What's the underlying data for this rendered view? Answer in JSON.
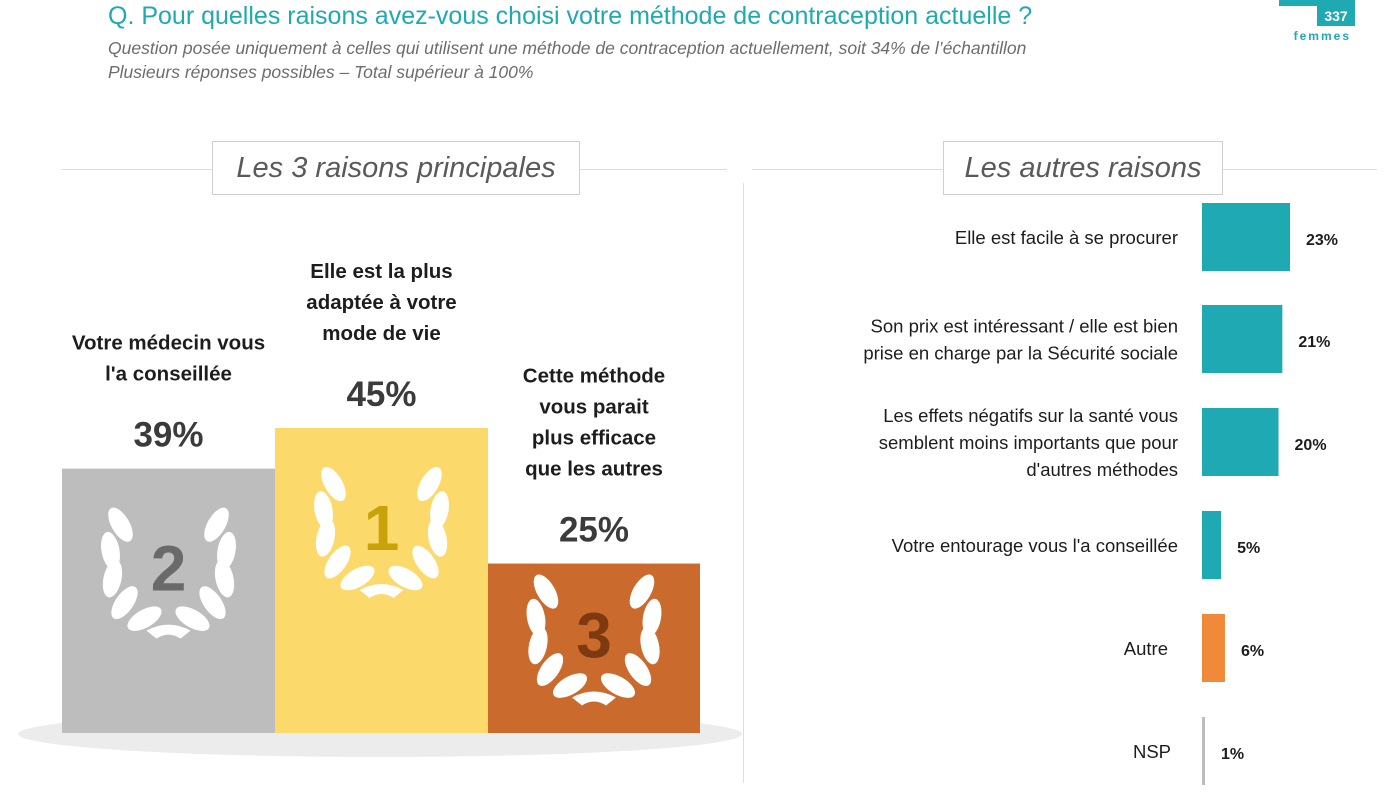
{
  "header": {
    "question": "Q. Pour quelles raisons avez-vous choisi votre méthode de contraception actuelle ?",
    "subtitle_line1": "Question posée uniquement à celles qui utilisent une méthode de contraception actuellement, soit 34% de l’échantillon",
    "subtitle_line2": "Plusieurs réponses possibles – Total supérieur à 100%",
    "sample_count": "337",
    "sample_unit": "femmes"
  },
  "colors": {
    "accent": "#1fa9b3",
    "autre": "#f08a3a",
    "nsp": "#bdbdbd",
    "gold": "#fcd96b",
    "silver": "#bdbdbd",
    "bronze": "#cb6a2d"
  },
  "chart_data": [
    {
      "type": "bar",
      "title": "Les 3 raisons principales",
      "categories": [
        "Votre médecin vous l'a conseillée",
        "Elle est la plus adaptée à votre mode de vie",
        "Cette méthode vous parait plus efficace que les autres"
      ],
      "values": [
        39,
        45,
        25
      ],
      "ranks": [
        "2",
        "1",
        "3"
      ],
      "value_labels": [
        "39%",
        "45%",
        "25%"
      ],
      "label_lines": [
        [
          "Votre médecin vous",
          "l'a conseillée"
        ],
        [
          "Elle est la plus",
          "adaptée à votre",
          "mode de vie"
        ],
        [
          "Cette méthode",
          "vous parait",
          "plus efficace",
          "que les autres"
        ]
      ],
      "ylim": [
        0,
        45
      ]
    },
    {
      "type": "bar",
      "title": "Les autres raisons",
      "categories": [
        "Elle est facile à se procurer",
        "Son prix est intéressant / elle est bien prise en charge par la Sécurité sociale",
        "Les effets négatifs sur la santé vous semblent moins importants que pour d'autres méthodes",
        "Votre entourage vous l'a conseillée",
        "Autre",
        "NSP"
      ],
      "label_lines": [
        [
          "Elle est facile à se procurer"
        ],
        [
          "Son prix est intéressant / elle est bien",
          "prise en charge par la Sécurité sociale"
        ],
        [
          "Les effets négatifs sur la santé vous",
          "semblent moins importants que pour",
          "d'autres méthodes"
        ],
        [
          "Votre entourage vous l'a conseillée"
        ],
        [
          "Autre"
        ],
        [
          "NSP"
        ]
      ],
      "values": [
        23,
        21,
        20,
        5,
        6,
        1
      ],
      "value_labels": [
        "23%",
        "21%",
        "20%",
        "5%",
        "6%",
        "1%"
      ],
      "xlim": [
        0,
        23
      ]
    }
  ]
}
